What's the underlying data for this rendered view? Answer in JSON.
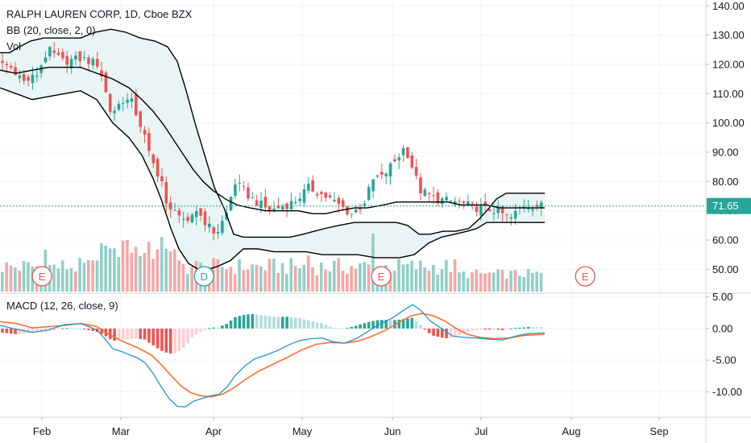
{
  "legend": {
    "title": "RALPH LAUREN CORP, 1D, Cboe BZX",
    "bb": "BB (20, close, 2, 0)",
    "vol": "Vol",
    "macd": "MACD (12, 26, close, 9)"
  },
  "last_price_label": "71.65",
  "colors": {
    "up": "#26a69a",
    "down": "#ef5350",
    "up_vol": "#8fd0c7",
    "down_vol": "#f4a7a6",
    "band_fill": "#e8f5f4",
    "band_line": "#000000",
    "macd_line": "#2196c9",
    "signal_line": "#ff6d2e",
    "price_line": "#26a69a",
    "event_marker": "#ef5350",
    "dividend_marker": "#26a69a"
  },
  "chart_data": [
    {
      "type": "candlestick",
      "title": "RALPH LAUREN CORP, 1D, Cboe BZX",
      "yticks": [
        "140.00",
        "130.00",
        "120.00",
        "110.00",
        "100.00",
        "90.00",
        "80.00",
        "70.00",
        "60.00",
        "50.00"
      ],
      "ylim": [
        46,
        141
      ],
      "last_price": 71.65,
      "xticks": [
        "Feb",
        "Mar",
        "Apr",
        "May",
        "Jun",
        "Jul",
        "Aug",
        "Sep"
      ],
      "x_range": [
        "2020-01-22",
        "2020-09-25"
      ],
      "events": [
        {
          "label": "E",
          "date": "2020-02-05",
          "kind": "earnings"
        },
        {
          "label": "D",
          "date": "2020-03-30",
          "kind": "dividend"
        },
        {
          "label": "E",
          "date": "2020-05-28",
          "kind": "earnings"
        },
        {
          "label": "E",
          "date": "2020-08-04",
          "kind": "earnings"
        }
      ],
      "close_path": [
        [
          "2020-01-22",
          121
        ],
        [
          "2020-01-27",
          118
        ],
        [
          "2020-01-30",
          114
        ],
        [
          "2020-02-03",
          116
        ],
        [
          "2020-02-07",
          125
        ],
        [
          "2020-02-12",
          121
        ],
        [
          "2020-02-18",
          122
        ],
        [
          "2020-02-24",
          120
        ],
        [
          "2020-02-28",
          103
        ],
        [
          "2020-03-03",
          108
        ],
        [
          "2020-03-06",
          107
        ],
        [
          "2020-03-10",
          96
        ],
        [
          "2020-03-12",
          88
        ],
        [
          "2020-03-16",
          80
        ],
        [
          "2020-03-18",
          68
        ],
        [
          "2020-03-20",
          72
        ],
        [
          "2020-03-24",
          64
        ],
        [
          "2020-03-27",
          71
        ],
        [
          "2020-04-01",
          64
        ],
        [
          "2020-04-03",
          62
        ],
        [
          "2020-04-07",
          70
        ],
        [
          "2020-04-09",
          80
        ],
        [
          "2020-04-15",
          74
        ],
        [
          "2020-04-21",
          70
        ],
        [
          "2020-04-29",
          73
        ],
        [
          "2020-05-04",
          78
        ],
        [
          "2020-05-11",
          74
        ],
        [
          "2020-05-18",
          69
        ],
        [
          "2020-05-22",
          72
        ],
        [
          "2020-05-26",
          82
        ],
        [
          "2020-05-28",
          81
        ],
        [
          "2020-06-03",
          89
        ],
        [
          "2020-06-05",
          92
        ],
        [
          "2020-06-10",
          77
        ],
        [
          "2020-06-15",
          74
        ],
        [
          "2020-06-22",
          73
        ],
        [
          "2020-06-29",
          71
        ],
        [
          "2020-07-06",
          70
        ],
        [
          "2020-07-10",
          67
        ],
        [
          "2020-07-14",
          72
        ],
        [
          "2020-07-21",
          71.65
        ]
      ],
      "bb_upper": [
        [
          0,
          124
        ],
        [
          12,
          124
        ],
        [
          24,
          126
        ],
        [
          38,
          128
        ],
        [
          54,
          129
        ],
        [
          76,
          129
        ],
        [
          100,
          129
        ],
        [
          118,
          131
        ],
        [
          138,
          132
        ],
        [
          156,
          131
        ],
        [
          174,
          129
        ],
        [
          192,
          128
        ],
        [
          208,
          126
        ],
        [
          220,
          121
        ],
        [
          230,
          112
        ],
        [
          242,
          100
        ],
        [
          254,
          89
        ],
        [
          266,
          78
        ],
        [
          278,
          71
        ],
        [
          290,
          62
        ],
        [
          302,
          61
        ],
        [
          320,
          61
        ],
        [
          340,
          61
        ],
        [
          360,
          61
        ],
        [
          376,
          62
        ],
        [
          390,
          63
        ],
        [
          404,
          64
        ],
        [
          420,
          65
        ],
        [
          440,
          66
        ],
        [
          460,
          66
        ],
        [
          478,
          66
        ],
        [
          492,
          66
        ],
        [
          506,
          65
        ],
        [
          520,
          62
        ],
        [
          534,
          62
        ],
        [
          550,
          63
        ],
        [
          566,
          63
        ],
        [
          582,
          64
        ],
        [
          594,
          67
        ],
        [
          604,
          70
        ],
        [
          616,
          74
        ],
        [
          628,
          76
        ],
        [
          644,
          76
        ],
        [
          676,
          76
        ]
      ],
      "bb_middle": [
        [
          0,
          118
        ],
        [
          20,
          117
        ],
        [
          40,
          118
        ],
        [
          60,
          119
        ],
        [
          80,
          119
        ],
        [
          100,
          119
        ],
        [
          120,
          117
        ],
        [
          140,
          115
        ],
        [
          160,
          112
        ],
        [
          176,
          108
        ],
        [
          190,
          104
        ],
        [
          204,
          99
        ],
        [
          216,
          94
        ],
        [
          228,
          89
        ],
        [
          240,
          84
        ],
        [
          252,
          80
        ],
        [
          264,
          77
        ],
        [
          280,
          74
        ],
        [
          294,
          72
        ],
        [
          310,
          71
        ],
        [
          330,
          70
        ],
        [
          350,
          70
        ],
        [
          370,
          70
        ],
        [
          388,
          69
        ],
        [
          404,
          69
        ],
        [
          420,
          70
        ],
        [
          440,
          71
        ],
        [
          456,
          71
        ],
        [
          476,
          72
        ],
        [
          492,
          73
        ],
        [
          508,
          73
        ],
        [
          524,
          73
        ],
        [
          540,
          73
        ],
        [
          556,
          73
        ],
        [
          572,
          72
        ],
        [
          588,
          72
        ],
        [
          604,
          72
        ],
        [
          620,
          71
        ],
        [
          640,
          71
        ],
        [
          676,
          71
        ]
      ],
      "bb_lower": [
        [
          0,
          112
        ],
        [
          20,
          110
        ],
        [
          40,
          108
        ],
        [
          60,
          109
        ],
        [
          80,
          110
        ],
        [
          100,
          111
        ],
        [
          120,
          108
        ],
        [
          140,
          100
        ],
        [
          160,
          95
        ],
        [
          176,
          89
        ],
        [
          190,
          81
        ],
        [
          200,
          74
        ],
        [
          212,
          64
        ],
        [
          222,
          57
        ],
        [
          234,
          52
        ],
        [
          246,
          50
        ],
        [
          258,
          50
        ],
        [
          270,
          51
        ],
        [
          286,
          53
        ],
        [
          302,
          57
        ],
        [
          320,
          57
        ],
        [
          340,
          56
        ],
        [
          360,
          56
        ],
        [
          380,
          56
        ],
        [
          400,
          55
        ],
        [
          420,
          55
        ],
        [
          444,
          55
        ],
        [
          466,
          54
        ],
        [
          484,
          54
        ],
        [
          496,
          54
        ],
        [
          514,
          55
        ],
        [
          532,
          59
        ],
        [
          548,
          61
        ],
        [
          564,
          62
        ],
        [
          580,
          63
        ],
        [
          592,
          64
        ],
        [
          604,
          66
        ],
        [
          622,
          66
        ],
        [
          640,
          66
        ],
        [
          676,
          66
        ]
      ],
      "macd_line": [
        [
          0,
          0.5
        ],
        [
          20,
          -0.1
        ],
        [
          40,
          -0.6
        ],
        [
          60,
          -0.2
        ],
        [
          80,
          0.6
        ],
        [
          100,
          0.8
        ],
        [
          120,
          -0.2
        ],
        [
          130,
          -1.6
        ],
        [
          140,
          -3.2
        ],
        [
          150,
          -3.6
        ],
        [
          160,
          -4.1
        ],
        [
          170,
          -4.6
        ],
        [
          180,
          -5.4
        ],
        [
          190,
          -7.1
        ],
        [
          200,
          -9.2
        ],
        [
          210,
          -11.1
        ],
        [
          220,
          -12.3
        ],
        [
          230,
          -12.4
        ],
        [
          240,
          -11.5
        ],
        [
          250,
          -11.1
        ],
        [
          262,
          -10.6
        ],
        [
          272,
          -10.4
        ],
        [
          282,
          -9.2
        ],
        [
          292,
          -7.4
        ],
        [
          304,
          -5.9
        ],
        [
          316,
          -4.8
        ],
        [
          330,
          -4.2
        ],
        [
          344,
          -3.5
        ],
        [
          358,
          -2.6
        ],
        [
          372,
          -1.9
        ],
        [
          386,
          -1.6
        ],
        [
          400,
          -1.5
        ],
        [
          414,
          -2.1
        ],
        [
          428,
          -2.3
        ],
        [
          442,
          -1.6
        ],
        [
          456,
          -0.5
        ],
        [
          470,
          0.6
        ],
        [
          486,
          1.6
        ],
        [
          500,
          2.8
        ],
        [
          512,
          3.8
        ],
        [
          522,
          2.9
        ],
        [
          534,
          1.2
        ],
        [
          548,
          0.0
        ],
        [
          562,
          -1.2
        ],
        [
          576,
          -1.4
        ],
        [
          592,
          -1.5
        ],
        [
          608,
          -1.7
        ],
        [
          624,
          -1.8
        ],
        [
          640,
          -1.2
        ],
        [
          656,
          -0.8
        ],
        [
          676,
          -0.7
        ]
      ],
      "signal_line": [
        [
          0,
          1.1
        ],
        [
          20,
          0.8
        ],
        [
          40,
          0.1
        ],
        [
          60,
          0.3
        ],
        [
          80,
          0.5
        ],
        [
          100,
          0.8
        ],
        [
          120,
          0.3
        ],
        [
          134,
          -0.8
        ],
        [
          150,
          -1.9
        ],
        [
          170,
          -3.0
        ],
        [
          188,
          -4.2
        ],
        [
          200,
          -5.7
        ],
        [
          212,
          -7.4
        ],
        [
          224,
          -9.0
        ],
        [
          236,
          -10.1
        ],
        [
          248,
          -10.6
        ],
        [
          262,
          -10.8
        ],
        [
          276,
          -10.4
        ],
        [
          290,
          -9.4
        ],
        [
          304,
          -8.1
        ],
        [
          320,
          -6.8
        ],
        [
          338,
          -5.7
        ],
        [
          356,
          -4.6
        ],
        [
          374,
          -3.4
        ],
        [
          392,
          -2.5
        ],
        [
          410,
          -2.2
        ],
        [
          428,
          -2.3
        ],
        [
          444,
          -2.0
        ],
        [
          460,
          -1.3
        ],
        [
          478,
          -0.3
        ],
        [
          494,
          0.9
        ],
        [
          510,
          2.0
        ],
        [
          524,
          2.4
        ],
        [
          538,
          2.0
        ],
        [
          552,
          1.2
        ],
        [
          566,
          0.0
        ],
        [
          580,
          -0.9
        ],
        [
          596,
          -1.4
        ],
        [
          614,
          -1.6
        ],
        [
          632,
          -1.5
        ],
        [
          650,
          -1.1
        ],
        [
          676,
          -0.9
        ]
      ]
    },
    {
      "type": "bar",
      "title": "MACD (12, 26, close, 9)",
      "yticks": [
        "5.00",
        "0.00",
        "-5.00",
        "-10.00"
      ],
      "ylim": [
        -15,
        5.5
      ]
    }
  ]
}
